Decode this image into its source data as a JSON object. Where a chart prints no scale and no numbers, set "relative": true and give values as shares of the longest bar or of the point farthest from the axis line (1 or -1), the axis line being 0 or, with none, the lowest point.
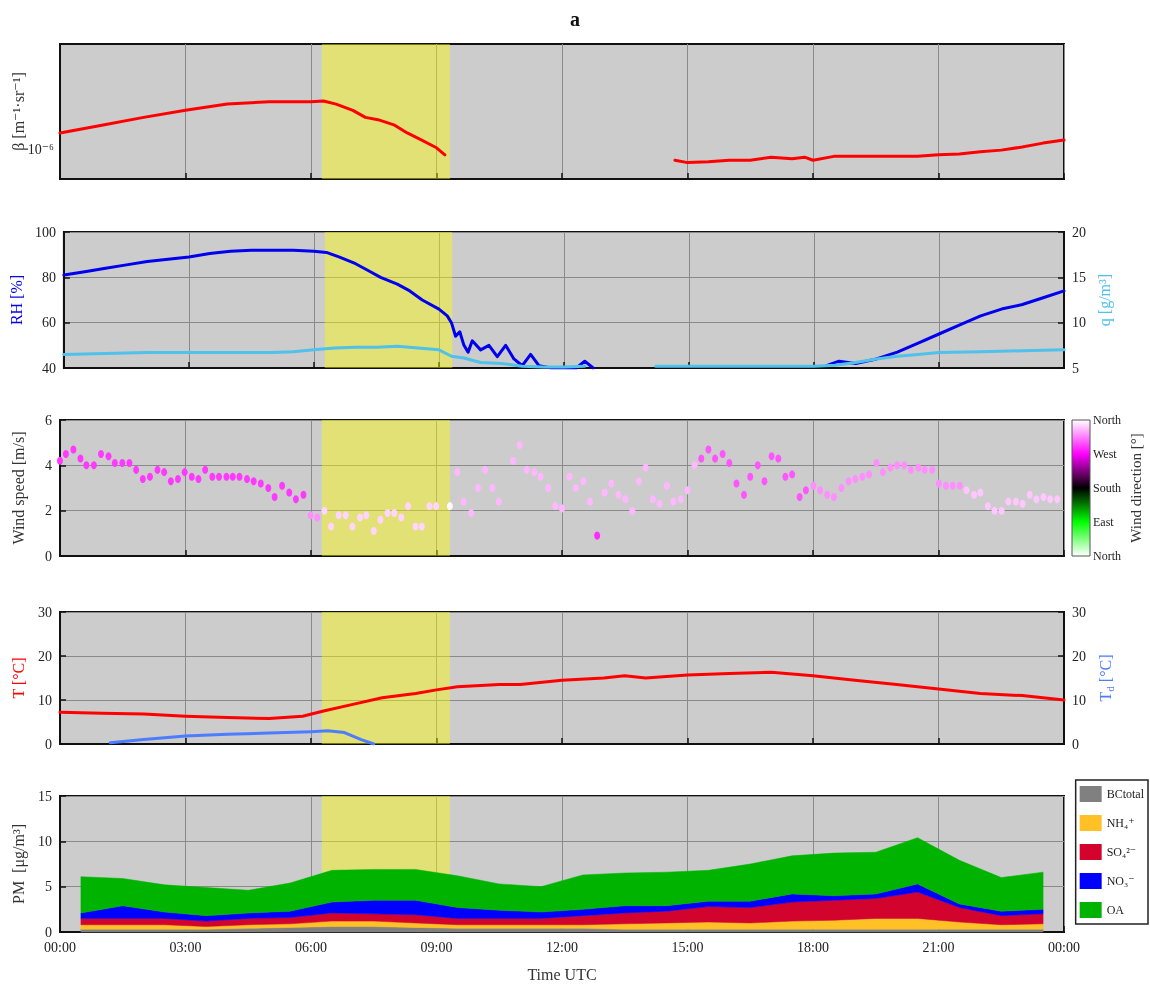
{
  "chart_data": [
    {
      "type": "line",
      "title": "a",
      "ylabel": "β [m⁻¹·sr⁻¹]",
      "relative": true,
      "grid": "x",
      "tick_labels": false,
      "annotations": [
        "10⁻⁶"
      ],
      "xlim": [
        0,
        24
      ],
      "xticks": [
        {
          "value": 0,
          "label": null
        },
        {
          "value": 3,
          "label": null
        },
        {
          "value": 6,
          "label": null
        },
        {
          "value": 9,
          "label": null
        },
        {
          "value": 12,
          "label": null
        },
        {
          "value": 15,
          "label": null
        },
        {
          "value": 18,
          "label": null
        },
        {
          "value": 21,
          "label": null
        },
        {
          "value": 24,
          "label": null
        }
      ],
      "bands": [
        {
          "axis": "x",
          "from": 6.26,
          "to": 9.32,
          "color": "#ffff00"
        }
      ],
      "series": [
        {
          "color": "#ff0000",
          "x": [
            0,
            1,
            2,
            3,
            4,
            5,
            6,
            6.3,
            6.6,
            7,
            7.3,
            7.6,
            8,
            8.3,
            8.6,
            9,
            9.2,
            9.3,
            14.7,
            15,
            15.5,
            16,
            16.5,
            17,
            17.5,
            17.8,
            18,
            18.5,
            19,
            19.5,
            20,
            20.5,
            21,
            21.5,
            22,
            22.5,
            23,
            23.5,
            24
          ],
          "values": [
            0.59,
            0.69,
            0.79,
            0.88,
            0.96,
            0.99,
            0.99,
            1,
            0.96,
            0.88,
            0.79,
            0.76,
            0.69,
            0.59,
            0.51,
            0.4,
            0.31,
            null,
            0.24,
            0.21,
            0.22,
            0.24,
            0.24,
            0.28,
            0.26,
            0.28,
            0.24,
            0.29,
            0.29,
            0.29,
            0.29,
            0.29,
            0.31,
            0.32,
            0.35,
            0.37,
            0.41,
            0.46,
            0.5
          ]
        }
      ]
    },
    {
      "type": "line",
      "ylabel": "RH [%]",
      "y2label": "q [g/m³]",
      "grid": true,
      "tick_labels": "y",
      "xlim": [
        0,
        24
      ],
      "xticks": [
        {
          "value": 0,
          "label": null
        },
        {
          "value": 3,
          "label": null
        },
        {
          "value": 6,
          "label": null
        },
        {
          "value": 9,
          "label": null
        },
        {
          "value": 12,
          "label": null
        },
        {
          "value": 15,
          "label": null
        },
        {
          "value": 18,
          "label": null
        },
        {
          "value": 21,
          "label": null
        },
        {
          "value": 24,
          "label": null
        }
      ],
      "ylim": [
        40,
        100
      ],
      "yticks": [
        40,
        60,
        80,
        100
      ],
      "y2lim": [
        5,
        20
      ],
      "y2ticks": [
        5,
        10,
        15,
        20
      ],
      "bands": [
        {
          "axis": "x",
          "from": 6.26,
          "to": 9.32,
          "color": "#ffff00"
        }
      ],
      "series": [
        {
          "color": "#0000ee",
          "x": [
            0,
            0.5,
            1,
            1.5,
            2,
            2.5,
            3,
            3.5,
            4,
            4.5,
            5,
            5.5,
            6,
            6.3,
            6.6,
            7,
            7.3,
            7.6,
            8,
            8.3,
            8.6,
            9,
            9.2,
            9.3,
            9.4,
            9.5,
            9.6,
            9.7,
            9.8,
            10,
            10.2,
            10.4,
            10.6,
            10.8,
            11,
            11.2,
            11.4,
            11.7,
            12,
            12.3,
            12.5,
            12.7,
            13.2,
            18.3,
            18.6,
            19,
            19.5,
            20,
            20.5,
            21,
            21.5,
            22,
            22.5,
            23,
            23.5,
            24
          ],
          "values": [
            81,
            82.5,
            84,
            85.5,
            87,
            88,
            89,
            90.5,
            91.5,
            92,
            92,
            92,
            91.5,
            91,
            89,
            86,
            83,
            80,
            77,
            74,
            70,
            66,
            63,
            60,
            54,
            56,
            50,
            47,
            52,
            48,
            50,
            45,
            50,
            44,
            41,
            46,
            41,
            40,
            40,
            40,
            43,
            40,
            null,
            41,
            43,
            42,
            44,
            47,
            51,
            55,
            59,
            63,
            66,
            68,
            71,
            74
          ]
        },
        {
          "color": "#4fc1ea",
          "axis": "y2",
          "x": [
            0,
            1,
            2,
            3,
            4,
            5,
            5.5,
            6,
            6.5,
            7,
            7.5,
            8,
            8.5,
            9,
            9.3,
            9.6,
            10,
            10.5,
            11,
            11.5,
            12,
            12.5,
            13,
            14.2,
            15,
            16,
            17,
            18,
            18.5,
            19,
            19.5,
            20,
            20.5,
            21,
            22,
            23,
            24
          ],
          "values": [
            6.5,
            6.6,
            6.7,
            6.7,
            6.7,
            6.7,
            6.8,
            7,
            7.2,
            7.3,
            7.3,
            7.4,
            7.2,
            7,
            6.3,
            6.1,
            5.6,
            5.5,
            5.2,
            5.1,
            5.1,
            5.2,
            null,
            5.2,
            5.2,
            5.2,
            5.2,
            5.2,
            5.3,
            5.6,
            6,
            6.3,
            6.5,
            6.7,
            6.8,
            6.9,
            7
          ]
        }
      ]
    },
    {
      "type": "scatter",
      "ylabel": "Wind speed [m/s]",
      "clabel": "Wind direction [°]",
      "grid": true,
      "tick_labels": "y",
      "marker": "circle",
      "xlim": [
        0,
        24
      ],
      "xticks": [
        {
          "value": 0,
          "label": null
        },
        {
          "value": 3,
          "label": null
        },
        {
          "value": 6,
          "label": null
        },
        {
          "value": 9,
          "label": null
        },
        {
          "value": 12,
          "label": null
        },
        {
          "value": 15,
          "label": null
        },
        {
          "value": 18,
          "label": null
        },
        {
          "value": 21,
          "label": null
        },
        {
          "value": 24,
          "label": null
        }
      ],
      "ylim": [
        0,
        6
      ],
      "yticks": [
        0,
        2,
        4,
        6
      ],
      "clim": [
        0,
        360
      ],
      "cticks": [
        {
          "value": 0,
          "label": "North"
        },
        {
          "value": 90,
          "label": "East"
        },
        {
          "value": 180,
          "label": "South"
        },
        {
          "value": 270,
          "label": "West"
        },
        {
          "value": 360,
          "label": "North"
        }
      ],
      "bands": [
        {
          "axis": "x",
          "from": 6.26,
          "to": 9.32,
          "color": "#ffff00"
        }
      ],
      "series": [
        {
          "x": [
            0,
            0.14,
            0.32,
            0.49,
            0.63,
            0.81,
            0.98,
            1.16,
            1.31,
            1.49,
            1.66,
            1.82,
            1.98,
            2.15,
            2.33,
            2.49,
            2.65,
            2.82,
            2.98,
            3.15,
            3.31,
            3.47,
            3.64,
            3.8,
            3.98,
            4.13,
            4.29,
            4.47,
            4.63,
            4.8,
            4.98,
            5.13,
            5.31,
            5.48,
            5.64,
            5.82,
            5.99,
            6.15,
            6.32,
            6.48,
            6.66,
            6.83,
            6.99,
            7.17,
            7.32,
            7.5,
            7.66,
            7.83,
            7.99,
            8.16,
            8.32,
            8.5,
            8.65,
            8.83,
            8.99,
            9.32,
            9.5,
            9.65,
            9.83,
            9.99,
            10.16,
            10.34,
            10.49,
            10.83,
            10.99,
            11.16,
            11.34,
            11.49,
            11.67,
            11.84,
            12,
            12.18,
            12.33,
            12.51,
            12.67,
            12.84,
            13.02,
            13.18,
            13.35,
            13.51,
            13.68,
            13.84,
            14,
            14.17,
            14.33,
            14.51,
            14.66,
            14.84,
            15,
            15.17,
            15.33,
            15.5,
            15.66,
            15.84,
            16,
            16.17,
            16.35,
            16.5,
            16.68,
            16.84,
            17.01,
            17.17,
            17.34,
            17.5,
            17.68,
            17.83,
            18.01,
            18.17,
            18.34,
            18.5,
            18.68,
            18.85,
            19.01,
            19.18,
            19.34,
            19.52,
            19.67,
            19.85,
            20.01,
            20.18,
            20.34,
            20.52,
            20.67,
            20.85,
            21.01,
            21.18,
            21.34,
            21.51,
            21.67,
            21.85,
            22,
            22.18,
            22.34,
            22.51,
            22.67,
            22.85,
            23.01,
            23.18,
            23.34,
            23.51,
            23.67,
            23.84
          ],
          "values": [
            4.2,
            4.5,
            4.7,
            4.3,
            4.0,
            4.0,
            4.5,
            4.4,
            4.1,
            4.1,
            4.1,
            3.8,
            3.4,
            3.5,
            3.8,
            3.7,
            3.3,
            3.4,
            3.7,
            3.5,
            3.4,
            3.8,
            3.5,
            3.5,
            3.5,
            3.5,
            3.5,
            3.4,
            3.3,
            3.2,
            3.0,
            2.6,
            3.1,
            2.8,
            2.5,
            2.7,
            1.8,
            1.7,
            2.0,
            1.3,
            1.8,
            1.8,
            1.3,
            1.7,
            1.8,
            1.1,
            1.6,
            1.9,
            1.9,
            1.7,
            2.2,
            1.3,
            1.3,
            2.2,
            2.2,
            2.2,
            3.7,
            2.4,
            1.9,
            3.0,
            3.8,
            3.0,
            2.4,
            4.2,
            4.9,
            3.8,
            3.7,
            3.5,
            3.0,
            2.2,
            2.1,
            3.5,
            3.0,
            3.3,
            2.4,
            0.9,
            2.8,
            3.2,
            2.7,
            2.5,
            2.0,
            3.3,
            3.9,
            2.5,
            2.3,
            3.1,
            2.4,
            2.5,
            2.9,
            4.0,
            4.3,
            4.7,
            4.3,
            4.5,
            4.1,
            3.2,
            2.7,
            3.5,
            4.0,
            3.3,
            4.4,
            4.3,
            3.5,
            3.6,
            2.6,
            2.9,
            3.1,
            2.9,
            2.7,
            2.6,
            3.0,
            3.3,
            3.4,
            3.5,
            3.6,
            4.1,
            3.7,
            3.9,
            4.0,
            4.0,
            3.8,
            3.9,
            3.8,
            3.8,
            3.2,
            3.1,
            3.1,
            3.1,
            2.9,
            2.7,
            2.8,
            2.2,
            2.0,
            2.0,
            2.4,
            2.4,
            2.3,
            2.7,
            2.5,
            2.6,
            2.5,
            2.5
          ],
          "cvalues": [
            290,
            290,
            290,
            290,
            290,
            290,
            290,
            290,
            290,
            290,
            290,
            290,
            290,
            290,
            290,
            290,
            290,
            290,
            290,
            290,
            290,
            290,
            290,
            290,
            290,
            290,
            290,
            290,
            290,
            290,
            290,
            290,
            290,
            290,
            290,
            290,
            320,
            320,
            345,
            345,
            345,
            345,
            345,
            345,
            345,
            345,
            345,
            345,
            345,
            345,
            345,
            345,
            345,
            345,
            345,
            358,
            335,
            335,
            335,
            335,
            335,
            335,
            335,
            335,
            335,
            335,
            335,
            335,
            335,
            335,
            335,
            335,
            335,
            335,
            335,
            285,
            335,
            335,
            335,
            335,
            335,
            335,
            335,
            335,
            335,
            335,
            335,
            335,
            335,
            335,
            300,
            300,
            300,
            300,
            300,
            300,
            300,
            300,
            300,
            300,
            300,
            300,
            300,
            300,
            300,
            300,
            320,
            320,
            320,
            320,
            320,
            320,
            320,
            320,
            320,
            320,
            320,
            320,
            320,
            320,
            320,
            320,
            320,
            320,
            320,
            320,
            320,
            320,
            340,
            340,
            340,
            340,
            340,
            340,
            340,
            340,
            340,
            340,
            340,
            340,
            340,
            340
          ]
        }
      ]
    },
    {
      "type": "line",
      "ylabel": "T [°C]",
      "y2label": "T$_{d}$ [°C]",
      "grid": true,
      "tick_labels": "y",
      "xlim": [
        0,
        24
      ],
      "xticks": [
        {
          "value": 0,
          "label": null
        },
        {
          "value": 3,
          "label": null
        },
        {
          "value": 6,
          "label": null
        },
        {
          "value": 9,
          "label": null
        },
        {
          "value": 12,
          "label": null
        },
        {
          "value": 15,
          "label": null
        },
        {
          "value": 18,
          "label": null
        },
        {
          "value": 21,
          "label": null
        },
        {
          "value": 24,
          "label": null
        }
      ],
      "ylim": [
        0,
        30
      ],
      "yticks": [
        0,
        10,
        20,
        30
      ],
      "y2lim": [
        0,
        30
      ],
      "y2ticks": [
        0,
        10,
        20,
        30
      ],
      "bands": [
        {
          "axis": "x",
          "from": 6.26,
          "to": 9.32,
          "color": "#ffff00"
        }
      ],
      "series": [
        {
          "color": "#ff0000",
          "x": [
            0,
            1,
            2,
            3,
            4,
            5,
            5.8,
            6.3,
            7,
            7.7,
            8.5,
            9,
            9.5,
            10.5,
            11,
            12,
            13,
            13.5,
            14,
            15,
            16,
            17,
            18,
            19,
            20,
            21,
            22,
            23,
            24
          ],
          "values": [
            7.2,
            7,
            6.8,
            6.3,
            6,
            5.8,
            6.3,
            7.5,
            9,
            10.5,
            11.5,
            12.3,
            13,
            13.5,
            13.5,
            14.5,
            15,
            15.5,
            15,
            15.7,
            16,
            16.3,
            15.5,
            14.5,
            13.5,
            12.5,
            11.5,
            11,
            10
          ]
        },
        {
          "color": "#4d7cff",
          "axis": "y2",
          "x": [
            1.2,
            2,
            3,
            4,
            5,
            6,
            6.4,
            6.8,
            7,
            7.2,
            7.5
          ],
          "values": [
            0.3,
            1,
            1.8,
            2.2,
            2.5,
            2.8,
            3,
            2.6,
            1.8,
            1,
            0
          ]
        }
      ]
    },
    {
      "type": "area",
      "stacked": true,
      "ylabel": "PM  [μg/m³]",
      "xlabel": "Time UTC",
      "grid": true,
      "legend": "right",
      "xlim": [
        0,
        24
      ],
      "xticks": [
        {
          "value": 0,
          "label": "00:00"
        },
        {
          "value": 3,
          "label": "03:00"
        },
        {
          "value": 6,
          "label": "06:00"
        },
        {
          "value": 9,
          "label": "09:00"
        },
        {
          "value": 12,
          "label": "12:00"
        },
        {
          "value": 15,
          "label": "15:00"
        },
        {
          "value": 18,
          "label": "18:00"
        },
        {
          "value": 21,
          "label": "21:00"
        },
        {
          "value": 24,
          "label": "00:00"
        }
      ],
      "ylim": [
        0,
        15
      ],
      "yticks": [
        0,
        5,
        10,
        15
      ],
      "bands": [
        {
          "axis": "x",
          "from": 6.26,
          "to": 9.32,
          "color": "#ffff00"
        }
      ],
      "x": [
        0.5,
        1.5,
        2.5,
        3.5,
        4.5,
        5.5,
        6.5,
        7.5,
        8.5,
        9.5,
        10.5,
        11.5,
        12.5,
        13.5,
        14.5,
        15.5,
        16.5,
        17.5,
        18.5,
        19.5,
        20.5,
        21.5,
        22.5,
        23.5
      ],
      "series": [
        {
          "name": "BCtotal",
          "color": "#808080",
          "values": [
            0.3,
            0.3,
            0.3,
            0.3,
            0.4,
            0.5,
            0.6,
            0.6,
            0.5,
            0.4,
            0.4,
            0.4,
            0.4,
            0.3,
            0.3,
            0.3,
            0.3,
            0.3,
            0.3,
            0.3,
            0.3,
            0.3,
            0.3,
            0.3
          ]
        },
        {
          "name": "NH₄⁺",
          "color": "#ffc125",
          "values": [
            0.5,
            0.5,
            0.5,
            0.3,
            0.4,
            0.4,
            0.6,
            0.6,
            0.5,
            0.4,
            0.4,
            0.4,
            0.4,
            0.6,
            0.7,
            0.8,
            0.7,
            0.9,
            1.0,
            1.2,
            1.2,
            0.8,
            0.5,
            0.6
          ]
        },
        {
          "name": "SO₄²⁻",
          "color": "#d2042d",
          "values": [
            0.7,
            0.7,
            0.7,
            0.6,
            0.7,
            0.7,
            0.9,
            0.8,
            0.9,
            0.7,
            0.7,
            0.7,
            1.0,
            1.2,
            1.3,
            1.7,
            1.7,
            2.1,
            2.2,
            2.2,
            2.9,
            1.6,
            1.0,
            1.1
          ]
        },
        {
          "name": "NO₃⁻",
          "color": "#0000ff",
          "values": [
            0.6,
            1.4,
            0.7,
            0.6,
            0.6,
            0.7,
            1.2,
            1.5,
            1.6,
            1.2,
            0.9,
            0.7,
            0.7,
            0.8,
            0.6,
            0.6,
            0.7,
            0.9,
            0.5,
            0.5,
            0.9,
            0.4,
            0.5,
            0.5
          ]
        },
        {
          "name": "OA",
          "color": "#00b300",
          "values": [
            4.0,
            3.0,
            3.0,
            3.1,
            2.5,
            3.1,
            3.5,
            3.4,
            3.4,
            3.5,
            2.9,
            2.8,
            3.8,
            3.6,
            3.7,
            3.4,
            4.1,
            4.2,
            4.7,
            4.6,
            5.1,
            4.8,
            3.7,
            4.1
          ]
        }
      ]
    }
  ]
}
